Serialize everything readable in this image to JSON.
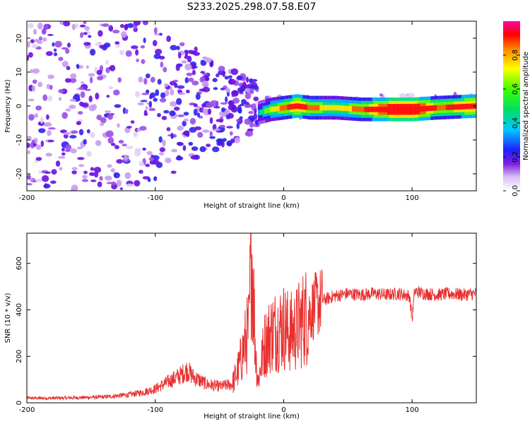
{
  "title": "S233.2025.298.07.58.E07",
  "chart_data": [
    {
      "type": "heatmap",
      "title": "S233.2025.298.07.58.E07",
      "xlabel": "Height of straight line (km)",
      "ylabel": "Frequency (Hz)",
      "xlim": [
        -200,
        150
      ],
      "ylim": [
        -25,
        25
      ],
      "x_ticks": [
        "-200",
        "-100",
        "0",
        "100"
      ],
      "y_ticks": [
        "-20",
        "-10",
        "0",
        "10",
        "20"
      ],
      "description_series": {
        "ridge_x": [
          -20,
          -10,
          0,
          10,
          20,
          40,
          60,
          80,
          100,
          120,
          150
        ],
        "ridge_frequency": [
          -2,
          -1,
          -0.5,
          0,
          -0.5,
          -0.5,
          -1,
          -1,
          -1,
          -0.5,
          0
        ],
        "ridge_amplitude": [
          0.3,
          0.5,
          0.6,
          0.8,
          0.6,
          0.5,
          0.6,
          0.9,
          1.0,
          0.6,
          0.8
        ]
      },
      "colorbar": {
        "label": "Normalized spectral amplitude",
        "range": [
          0,
          1
        ],
        "ticks": [
          "0.0",
          "0.2",
          "0.4",
          "0.6",
          "0.8"
        ]
      }
    },
    {
      "type": "line",
      "xlabel": "Height of straight line (km)",
      "ylabel": "SNR (10 * v/v)",
      "xlim": [
        -200,
        150
      ],
      "ylim": [
        0,
        730
      ],
      "x_ticks": [
        "-200",
        "-100",
        "0",
        "100"
      ],
      "y_ticks": [
        "0",
        "200",
        "400",
        "600"
      ],
      "color": "#e83030",
      "series": [
        {
          "name": "SNR",
          "x": [
            -200,
            -180,
            -160,
            -140,
            -120,
            -110,
            -100,
            -90,
            -80,
            -75,
            -70,
            -60,
            -50,
            -40,
            -35,
            -30,
            -27,
            -25,
            -22,
            -20,
            -15,
            -10,
            -5,
            0,
            5,
            10,
            15,
            20,
            25,
            30,
            40,
            50,
            60,
            70,
            80,
            90,
            98,
            100,
            102,
            110,
            120,
            130,
            140,
            150
          ],
          "y": [
            20,
            20,
            22,
            25,
            35,
            45,
            60,
            90,
            120,
            140,
            110,
            80,
            70,
            80,
            150,
            260,
            320,
            700,
            230,
            90,
            250,
            300,
            320,
            330,
            300,
            320,
            360,
            390,
            420,
            440,
            460,
            470,
            465,
            470,
            465,
            470,
            460,
            360,
            480,
            470,
            465,
            470,
            465,
            470
          ]
        }
      ]
    }
  ]
}
